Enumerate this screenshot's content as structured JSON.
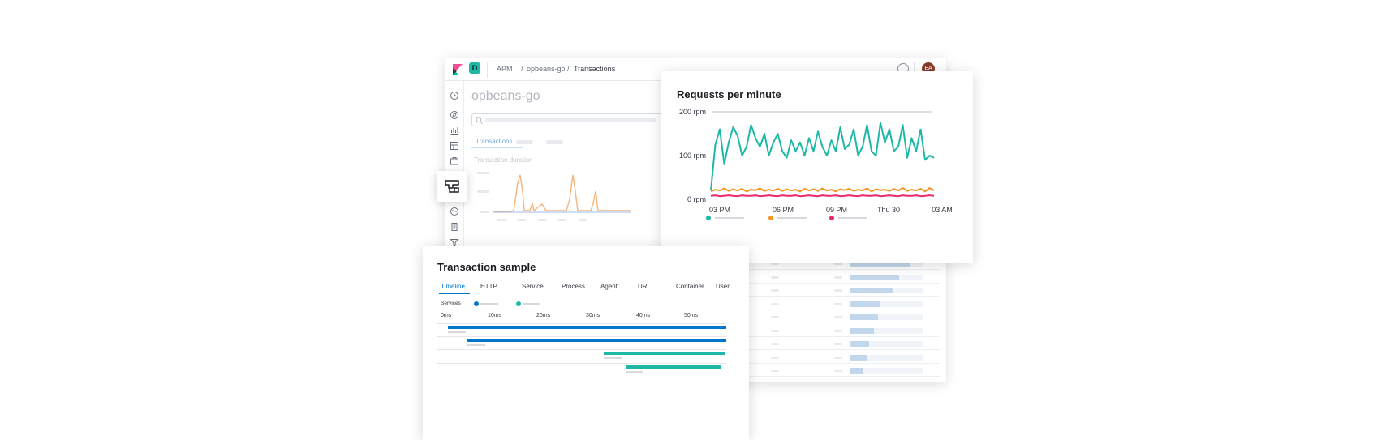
{
  "header": {
    "space_badge": "D",
    "breadcrumbs": [
      "APM",
      "/",
      "opbeans-go",
      "/",
      "Transactions"
    ],
    "avatar_initials": "EA"
  },
  "page": {
    "title": "opbeans-go",
    "active_tab": "Transactions",
    "section_label": "Transaction duration"
  },
  "requests_card": {
    "title": "Requests per minute",
    "chart_data": {
      "type": "line",
      "title": "Requests per minute",
      "y_ticks": [
        "200 rpm",
        "100 rpm",
        "0 rpm"
      ],
      "x_ticks": [
        "03 PM",
        "06 PM",
        "09 PM",
        "Thu 30",
        "03 AM"
      ],
      "ylim": [
        0,
        200
      ],
      "grid": true,
      "legend_position": "bottom",
      "series": [
        {
          "color": "#1eb8a6",
          "values": [
            20,
            125,
            160,
            80,
            130,
            165,
            145,
            100,
            120,
            170,
            140,
            120,
            150,
            100,
            130,
            150,
            110,
            95,
            135,
            110,
            130,
            100,
            140,
            110,
            155,
            120,
            100,
            135,
            110,
            165,
            115,
            125,
            160,
            100,
            120,
            170,
            110,
            100,
            175,
            130,
            160,
            110,
            120,
            170,
            95,
            140,
            110,
            160,
            90,
            100,
            95
          ]
        },
        {
          "color": "#f39723",
          "values": [
            18,
            22,
            20,
            25,
            19,
            23,
            20,
            24,
            18,
            22,
            21,
            25,
            19,
            22,
            20,
            24,
            19,
            23,
            20,
            22,
            18,
            24,
            20,
            23,
            19,
            25,
            20,
            22,
            18,
            23,
            21,
            24,
            19,
            22,
            20,
            25,
            18,
            23,
            21,
            22,
            19,
            24,
            20,
            26,
            19,
            22,
            20,
            24,
            18,
            26,
            20
          ]
        },
        {
          "color": "#e8296e",
          "values": [
            8,
            9,
            7,
            8,
            9,
            8,
            7,
            9,
            8,
            8,
            9,
            7,
            8,
            9,
            8,
            7,
            9,
            8,
            8,
            9,
            7,
            8,
            9,
            8,
            7,
            9,
            8,
            8,
            9,
            7,
            8,
            9,
            8,
            7,
            9,
            8,
            8,
            9,
            7,
            8,
            9,
            8,
            7,
            9,
            8,
            8,
            9,
            7,
            8,
            9,
            8
          ]
        }
      ]
    }
  },
  "transaction_sample": {
    "title": "Transaction sample",
    "tabs": [
      "Timeline",
      "HTTP",
      "Service",
      "Process",
      "Agent",
      "URL",
      "Container",
      "User"
    ],
    "active_tab": "Timeline",
    "services_label": "Services",
    "legend_colors": [
      "#0077cc",
      "#1eb8a6"
    ],
    "ticks": [
      "0ms",
      "10ms",
      "20ms",
      "30ms",
      "40ms",
      "50ms"
    ],
    "spans": [
      {
        "color": "#0077cc",
        "start_ms": 1.5,
        "end_ms": 60
      },
      {
        "color": "#0077cc",
        "start_ms": 5.5,
        "end_ms": 60
      },
      {
        "color": "#1eb8a6",
        "start_ms": 33.5,
        "end_ms": 58.5
      },
      {
        "color": "#1eb8a6",
        "start_ms": 38,
        "end_ms": 57.5
      }
    ]
  },
  "table": {
    "row_fills": [
      0.82,
      0.67,
      0.58,
      0.4,
      0.38,
      0.32,
      0.26,
      0.22,
      0.17
    ]
  }
}
